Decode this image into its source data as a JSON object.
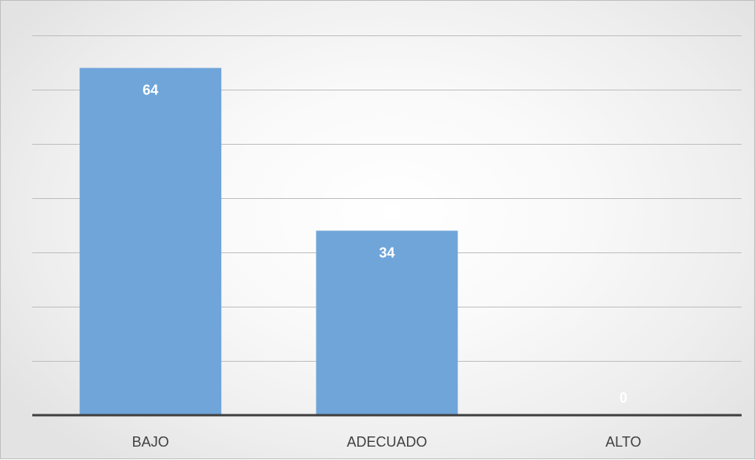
{
  "chart_data": {
    "type": "bar",
    "categories": [
      "BAJO",
      "ADECUADO",
      "ALTO"
    ],
    "values": [
      64,
      34,
      0
    ],
    "data_labels": [
      "64",
      "34",
      "0"
    ],
    "ylim": [
      0,
      70
    ],
    "grid": true,
    "legend": "none",
    "bar_color": "#6fa5d9",
    "label_color": "#ffffff"
  }
}
